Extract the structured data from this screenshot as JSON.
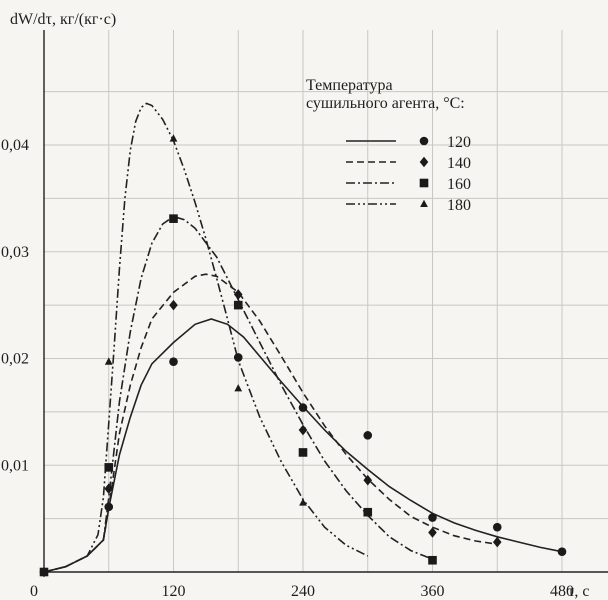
{
  "chart_data": {
    "type": "line",
    "ylabel": "dW/dτ, кг/(кг·с)",
    "xlabel": "τ, с",
    "x_ticks": [
      0,
      120,
      240,
      360,
      480
    ],
    "x_tick_labels": [
      "0",
      "120",
      "240",
      "360",
      "480"
    ],
    "y_ticks": [
      0.01,
      0.02,
      0.03,
      0.04
    ],
    "y_tick_labels": [
      "0,01",
      "0,02",
      "0,03",
      "0,04"
    ],
    "xlim": [
      0,
      500
    ],
    "ylim": [
      0,
      0.0465
    ],
    "grid": true,
    "legend": {
      "title": [
        "Температура",
        "сушильного агента, °C:"
      ],
      "placement": "top-right"
    },
    "series": [
      {
        "name": "120",
        "line_style": "solid",
        "marker": "circle",
        "curve": [
          [
            0,
            0
          ],
          [
            20,
            0.0005
          ],
          [
            40,
            0.0015
          ],
          [
            55,
            0.003
          ],
          [
            60,
            0.006
          ],
          [
            70,
            0.011
          ],
          [
            80,
            0.0145
          ],
          [
            90,
            0.0175
          ],
          [
            100,
            0.0195
          ],
          [
            120,
            0.0215
          ],
          [
            140,
            0.0232
          ],
          [
            155,
            0.0237
          ],
          [
            170,
            0.0232
          ],
          [
            185,
            0.022
          ],
          [
            200,
            0.0202
          ],
          [
            220,
            0.0178
          ],
          [
            240,
            0.0155
          ],
          [
            260,
            0.0133
          ],
          [
            280,
            0.0113
          ],
          [
            300,
            0.0096
          ],
          [
            320,
            0.008
          ],
          [
            340,
            0.0067
          ],
          [
            360,
            0.0055
          ],
          [
            380,
            0.0046
          ],
          [
            400,
            0.0039
          ],
          [
            420,
            0.0033
          ],
          [
            440,
            0.0028
          ],
          [
            460,
            0.0023
          ],
          [
            480,
            0.0019
          ]
        ],
        "points": [
          [
            0,
            0
          ],
          [
            60,
            0.0061
          ],
          [
            120,
            0.0197
          ],
          [
            180,
            0.0201
          ],
          [
            240,
            0.0154
          ],
          [
            300,
            0.0128
          ],
          [
            360,
            0.0051
          ],
          [
            420,
            0.0042
          ],
          [
            480,
            0.0019
          ]
        ]
      },
      {
        "name": "140",
        "line_style": "dashed",
        "marker": "diamond",
        "curve": [
          [
            0,
            0
          ],
          [
            20,
            0.0005
          ],
          [
            40,
            0.0015
          ],
          [
            55,
            0.003
          ],
          [
            60,
            0.006
          ],
          [
            70,
            0.013
          ],
          [
            80,
            0.0175
          ],
          [
            90,
            0.021
          ],
          [
            100,
            0.0237
          ],
          [
            120,
            0.0262
          ],
          [
            140,
            0.0277
          ],
          [
            150,
            0.0279
          ],
          [
            160,
            0.0277
          ],
          [
            180,
            0.0262
          ],
          [
            200,
            0.0235
          ],
          [
            220,
            0.0202
          ],
          [
            240,
            0.0168
          ],
          [
            260,
            0.0137
          ],
          [
            280,
            0.011
          ],
          [
            300,
            0.0087
          ],
          [
            320,
            0.0068
          ],
          [
            340,
            0.0052
          ],
          [
            360,
            0.0042
          ],
          [
            380,
            0.0034
          ],
          [
            400,
            0.0029
          ],
          [
            420,
            0.0026
          ]
        ],
        "points": [
          [
            0,
            0
          ],
          [
            60,
            0.0078
          ],
          [
            120,
            0.025
          ],
          [
            180,
            0.026
          ],
          [
            240,
            0.0133
          ],
          [
            300,
            0.0086
          ],
          [
            360,
            0.0037
          ],
          [
            420,
            0.0028
          ]
        ]
      },
      {
        "name": "160",
        "line_style": "dash-dot",
        "marker": "square",
        "curve": [
          [
            0,
            0
          ],
          [
            20,
            0.0005
          ],
          [
            40,
            0.0015
          ],
          [
            55,
            0.003
          ],
          [
            60,
            0.007
          ],
          [
            70,
            0.016
          ],
          [
            80,
            0.0225
          ],
          [
            90,
            0.0275
          ],
          [
            100,
            0.0308
          ],
          [
            110,
            0.0326
          ],
          [
            120,
            0.0333
          ],
          [
            130,
            0.033
          ],
          [
            140,
            0.0322
          ],
          [
            160,
            0.0295
          ],
          [
            180,
            0.0255
          ],
          [
            200,
            0.0215
          ],
          [
            220,
            0.0175
          ],
          [
            240,
            0.0138
          ],
          [
            260,
            0.0104
          ],
          [
            280,
            0.0076
          ],
          [
            300,
            0.0053
          ],
          [
            320,
            0.0033
          ],
          [
            340,
            0.002
          ],
          [
            360,
            0.0012
          ]
        ],
        "points": [
          [
            0,
            0
          ],
          [
            60,
            0.0098
          ],
          [
            120,
            0.0331
          ],
          [
            180,
            0.025
          ],
          [
            240,
            0.0112
          ],
          [
            300,
            0.0056
          ],
          [
            360,
            0.0011
          ]
        ]
      },
      {
        "name": "180",
        "line_style": "dash-dot-dot",
        "marker": "triangle",
        "curve": [
          [
            0,
            0
          ],
          [
            20,
            0.0005
          ],
          [
            40,
            0.0015
          ],
          [
            50,
            0.0035
          ],
          [
            55,
            0.007
          ],
          [
            60,
            0.014
          ],
          [
            65,
            0.021
          ],
          [
            70,
            0.0285
          ],
          [
            75,
            0.035
          ],
          [
            80,
            0.0395
          ],
          [
            85,
            0.0422
          ],
          [
            90,
            0.0435
          ],
          [
            95,
            0.0439
          ],
          [
            100,
            0.0437
          ],
          [
            110,
            0.0424
          ],
          [
            120,
            0.0404
          ],
          [
            130,
            0.0377
          ],
          [
            140,
            0.0346
          ],
          [
            150,
            0.0312
          ],
          [
            160,
            0.0275
          ],
          [
            170,
            0.0237
          ],
          [
            180,
            0.0198
          ],
          [
            200,
            0.0145
          ],
          [
            220,
            0.0103
          ],
          [
            240,
            0.0068
          ],
          [
            260,
            0.0042
          ],
          [
            280,
            0.0025
          ],
          [
            300,
            0.0015
          ]
        ],
        "points": [
          [
            0,
            0
          ],
          [
            60,
            0.0197
          ],
          [
            120,
            0.0406
          ],
          [
            180,
            0.0172
          ],
          [
            240,
            0.0065
          ]
        ]
      }
    ]
  }
}
